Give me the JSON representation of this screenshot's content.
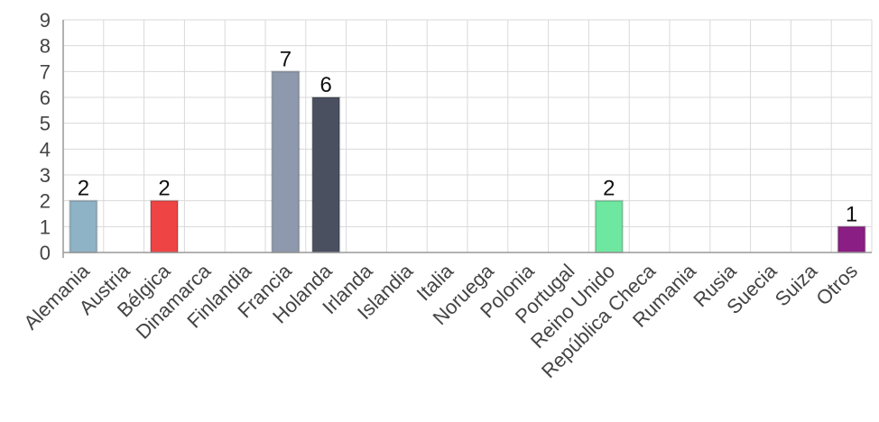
{
  "chart_data": {
    "type": "bar",
    "categories": [
      "Alemania",
      "Austria",
      "Bélgica",
      "Dinamarca",
      "Finlandia",
      "Francia",
      "Holanda",
      "Irlanda",
      "Islandia",
      "Italia",
      "Noruega",
      "Polonia",
      "Portugal",
      "Reino Unido",
      "República Checa",
      "Rumania",
      "Rusia",
      "Suecia",
      "Suiza",
      "Otros"
    ],
    "values": [
      2,
      0,
      2,
      0,
      0,
      7,
      6,
      0,
      0,
      0,
      0,
      0,
      0,
      2,
      0,
      0,
      0,
      0,
      0,
      1
    ],
    "colors": [
      "#8fb3c6",
      "#8fb3c6",
      "#ef4444",
      "#8fb3c6",
      "#8fb3c6",
      "#8e99ad",
      "#4a5060",
      "#8fb3c6",
      "#8fb3c6",
      "#8fb3c6",
      "#8fb3c6",
      "#8fb3c6",
      "#8fb3c6",
      "#6ee7a0",
      "#8fb3c6",
      "#8fb3c6",
      "#8fb3c6",
      "#8fb3c6",
      "#8fb3c6",
      "#8b1e84"
    ],
    "yticks": [
      "0",
      "1",
      "2",
      "3",
      "4",
      "5",
      "6",
      "7",
      "8",
      "9"
    ],
    "ylim": [
      0,
      9
    ],
    "grid": true,
    "title": "",
    "xlabel": "",
    "ylabel": ""
  }
}
